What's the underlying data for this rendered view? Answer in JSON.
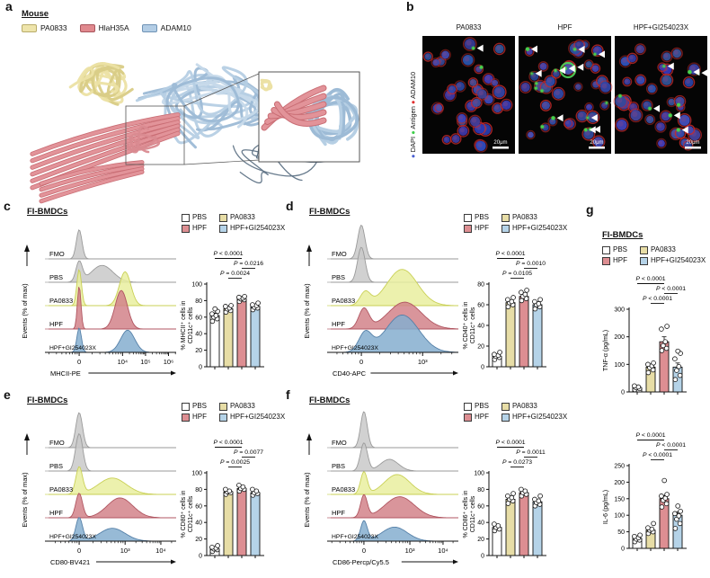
{
  "panel_a": {
    "letter": "a",
    "species_label": "Mouse",
    "legend": [
      {
        "label": "PA0833",
        "color": "#eee4ab",
        "stroke": "#b8ac6a"
      },
      {
        "label": "HlaH35A",
        "color": "#e0898e",
        "stroke": "#a8545c"
      },
      {
        "label": "ADAM10",
        "color": "#b3cde5",
        "stroke": "#6f93b5"
      }
    ]
  },
  "panel_b": {
    "letter": "b",
    "scale_label": "20μm",
    "side_markers": [
      {
        "label": "DAPI",
        "color": "#4a5fd0"
      },
      {
        "label": "Antigen",
        "color": "#3ecf4a"
      },
      {
        "label": "ADAM10",
        "color": "#e03030"
      }
    ],
    "images": [
      {
        "title": "PA0833",
        "green_spots": 2,
        "arrows": 1,
        "big_green": false
      },
      {
        "title": "HPF",
        "green_spots": 16,
        "arrows": 12,
        "big_green": true
      },
      {
        "title": "HPF+GI254023X",
        "green_spots": 8,
        "arrows": 6,
        "big_green": false
      }
    ]
  },
  "flow_legend": [
    {
      "label": "PBS",
      "color": "#ffffff"
    },
    {
      "label": "PA0833",
      "color": "#e7dda6"
    },
    {
      "label": "HPF",
      "color": "#dd8e92"
    },
    {
      "label": "HPF+GI254023X",
      "color": "#b5d3e8"
    }
  ],
  "row_labels": [
    "FMO",
    "PBS",
    "PA0833",
    "HPF",
    "HPF+GI254023X"
  ],
  "flow_panels": [
    {
      "letter": "c",
      "title": "FI-BMDCs",
      "ridge": {
        "ylabel": "Events (% of max)",
        "xlabel": "MHCII-PE",
        "ticks": [
          {
            "f": 0.24,
            "l": "0"
          },
          {
            "f": 0.58,
            "l": "10⁴"
          },
          {
            "f": 0.76,
            "l": "10⁵"
          },
          {
            "f": 0.94,
            "l": "10⁶"
          }
        ],
        "rows": [
          {
            "label": "FMO",
            "fill": "#c9c9c9",
            "stroke": "#9a9a9a",
            "peaks": [
              {
                "c": 0.24,
                "w": 0.022,
                "h": 1.25
              }
            ]
          },
          {
            "label": "PBS",
            "fill": "#c9c9c9",
            "stroke": "#9a9a9a",
            "peaks": [
              {
                "c": 0.24,
                "w": 0.025,
                "h": 0.85
              },
              {
                "c": 0.42,
                "w": 0.085,
                "h": 0.72
              }
            ]
          },
          {
            "label": "PA0833",
            "fill": "#e9ef9f",
            "stroke": "#c9d055",
            "peaks": [
              {
                "c": 0.24,
                "w": 0.018,
                "h": 1.55
              },
              {
                "c": 0.6,
                "w": 0.045,
                "h": 1.45
              }
            ]
          },
          {
            "label": "HPF",
            "fill": "#d2838a",
            "stroke": "#b05560",
            "peaks": [
              {
                "c": 0.24,
                "w": 0.014,
                "h": 1.85
              },
              {
                "c": 0.57,
                "w": 0.048,
                "h": 1.65
              }
            ]
          },
          {
            "label": "HPF+GI254023X",
            "fill": "#85aecf",
            "stroke": "#5580a8",
            "peaks": [
              {
                "c": 0.24,
                "w": 0.018,
                "h": 1.05
              },
              {
                "c": 0.62,
                "w": 0.055,
                "h": 0.95
              }
            ]
          }
        ]
      },
      "bar": {
        "ylabel_lines": [
          "% MHCII⁺ cells in",
          "CD11c⁺ cells"
        ],
        "ymax": 100,
        "ytick_step": 20,
        "values": [
          62,
          70,
          82,
          73
        ],
        "errors": [
          3,
          2,
          2,
          2
        ],
        "dots": [
          [
            55,
            58,
            60,
            62,
            64,
            67,
            70
          ],
          [
            66,
            68,
            70,
            71,
            73,
            74
          ],
          [
            79,
            81,
            82,
            83,
            84,
            85
          ],
          [
            69,
            71,
            72,
            74,
            75,
            77
          ]
        ],
        "pvals": [
          {
            "text": "P < 0.0001",
            "from": 0,
            "to": 2
          },
          {
            "text": "P = 0.0216",
            "from": 2,
            "to": 3
          },
          {
            "text": "P = 0.0024",
            "from": 1,
            "to": 2
          }
        ]
      }
    },
    {
      "letter": "d",
      "title": "FI-BMDCs",
      "ridge": {
        "ylabel": "Events (% of max)",
        "xlabel": "CD40-APC",
        "ticks": [
          {
            "f": 0.24,
            "l": "0"
          },
          {
            "f": 0.72,
            "l": "10³"
          }
        ],
        "rows": [
          {
            "label": "FMO",
            "fill": "#c9c9c9",
            "stroke": "#9a9a9a",
            "peaks": [
              {
                "c": 0.24,
                "w": 0.028,
                "h": 1.45
              }
            ]
          },
          {
            "label": "PBS",
            "fill": "#c9c9c9",
            "stroke": "#9a9a9a",
            "peaks": [
              {
                "c": 0.24,
                "w": 0.03,
                "h": 1.5
              }
            ]
          },
          {
            "label": "PA0833",
            "fill": "#e9ef9f",
            "stroke": "#c9d055",
            "peaks": [
              {
                "c": 0.27,
                "w": 0.04,
                "h": 0.55
              },
              {
                "c": 0.56,
                "w": 0.12,
                "h": 1.55
              }
            ]
          },
          {
            "label": "HPF",
            "fill": "#d2838a",
            "stroke": "#b05560",
            "peaks": [
              {
                "c": 0.26,
                "w": 0.04,
                "h": 0.85
              },
              {
                "c": 0.58,
                "w": 0.13,
                "h": 1.15
              }
            ]
          },
          {
            "label": "HPF+GI254023X",
            "fill": "#85aecf",
            "stroke": "#5580a8",
            "peaks": [
              {
                "c": 0.27,
                "w": 0.05,
                "h": 0.8
              },
              {
                "c": 0.56,
                "w": 0.13,
                "h": 1.6
              }
            ]
          }
        ]
      },
      "bar": {
        "ylabel_lines": [
          "% CD40⁺ cells in",
          "CD11c⁺ cells"
        ],
        "ymax": 80,
        "ytick_step": 20,
        "values": [
          10,
          62,
          68,
          60
        ],
        "errors": [
          2,
          2,
          2,
          2
        ],
        "dots": [
          [
            7,
            9,
            10,
            11,
            12,
            14
          ],
          [
            58,
            60,
            62,
            63,
            65,
            67
          ],
          [
            64,
            66,
            68,
            70,
            72,
            74
          ],
          [
            56,
            58,
            60,
            61,
            63,
            65
          ]
        ],
        "pvals": [
          {
            "text": "P < 0.0001",
            "from": 0,
            "to": 2
          },
          {
            "text": "P = 0.0010",
            "from": 2,
            "to": 3
          },
          {
            "text": "P = 0.0105",
            "from": 1,
            "to": 2
          }
        ]
      }
    },
    {
      "letter": "e",
      "title": "FI-BMDCs",
      "ridge": {
        "ylabel": "Events (% of max)",
        "xlabel": "CD80-BV421",
        "ticks": [
          {
            "f": 0.24,
            "l": "0"
          },
          {
            "f": 0.6,
            "l": "10³"
          },
          {
            "f": 0.88,
            "l": "10⁴"
          }
        ],
        "rows": [
          {
            "label": "FMO",
            "fill": "#c9c9c9",
            "stroke": "#9a9a9a",
            "peaks": [
              {
                "c": 0.24,
                "w": 0.026,
                "h": 1.5
              }
            ]
          },
          {
            "label": "PBS",
            "fill": "#c9c9c9",
            "stroke": "#9a9a9a",
            "peaks": [
              {
                "c": 0.24,
                "w": 0.028,
                "h": 1.6
              }
            ]
          },
          {
            "label": "PA0833",
            "fill": "#e9ef9f",
            "stroke": "#c9d055",
            "peaks": [
              {
                "c": 0.24,
                "w": 0.026,
                "h": 1.15
              },
              {
                "c": 0.5,
                "w": 0.11,
                "h": 0.7
              }
            ]
          },
          {
            "label": "HPF",
            "fill": "#d2838a",
            "stroke": "#b05560",
            "peaks": [
              {
                "c": 0.24,
                "w": 0.026,
                "h": 1.05
              },
              {
                "c": 0.56,
                "w": 0.1,
                "h": 0.85
              }
            ]
          },
          {
            "label": "HPF+GI254023X",
            "fill": "#85aecf",
            "stroke": "#5580a8",
            "peaks": [
              {
                "c": 0.24,
                "w": 0.026,
                "h": 1.0
              },
              {
                "c": 0.5,
                "w": 0.1,
                "h": 0.55
              }
            ]
          }
        ]
      },
      "bar": {
        "ylabel_lines": [
          "% CD80⁺ cells in",
          "CD11c⁺ cells"
        ],
        "ymax": 100,
        "ytick_step": 20,
        "values": [
          8,
          77,
          81,
          76
        ],
        "errors": [
          2,
          2,
          2,
          2
        ],
        "dots": [
          [
            5,
            7,
            8,
            9,
            10,
            12
          ],
          [
            74,
            76,
            77,
            78,
            80
          ],
          [
            78,
            80,
            81,
            83,
            85
          ],
          [
            73,
            75,
            76,
            78,
            80
          ]
        ],
        "pvals": [
          {
            "text": "P < 0.0001",
            "from": 0,
            "to": 2
          },
          {
            "text": "P = 0.0077",
            "from": 2,
            "to": 3
          },
          {
            "text": "P = 0.0025",
            "from": 1,
            "to": 2
          }
        ]
      }
    },
    {
      "letter": "f",
      "title": "FI-BMDCs",
      "ridge": {
        "ylabel": "Events (% of max)",
        "xlabel": "CD86-Percp/Cy5.5",
        "ticks": [
          {
            "f": 0.26,
            "l": "0"
          },
          {
            "f": 0.62,
            "l": "10³"
          },
          {
            "f": 0.88,
            "l": "10⁴"
          }
        ],
        "rows": [
          {
            "label": "FMO",
            "fill": "#c9c9c9",
            "stroke": "#9a9a9a",
            "peaks": [
              {
                "c": 0.26,
                "w": 0.026,
                "h": 1.55
              }
            ]
          },
          {
            "label": "PBS",
            "fill": "#c9c9c9",
            "stroke": "#9a9a9a",
            "peaks": [
              {
                "c": 0.26,
                "w": 0.028,
                "h": 1.2
              },
              {
                "c": 0.46,
                "w": 0.07,
                "h": 0.5
              }
            ]
          },
          {
            "label": "PA0833",
            "fill": "#e9ef9f",
            "stroke": "#c9d055",
            "peaks": [
              {
                "c": 0.26,
                "w": 0.026,
                "h": 0.95
              },
              {
                "c": 0.52,
                "w": 0.1,
                "h": 0.85
              }
            ]
          },
          {
            "label": "HPF",
            "fill": "#d2838a",
            "stroke": "#b05560",
            "peaks": [
              {
                "c": 0.26,
                "w": 0.026,
                "h": 0.95
              },
              {
                "c": 0.54,
                "w": 0.115,
                "h": 0.9
              }
            ]
          },
          {
            "label": "HPF+GI254023X",
            "fill": "#85aecf",
            "stroke": "#5580a8",
            "peaks": [
              {
                "c": 0.26,
                "w": 0.026,
                "h": 0.85
              },
              {
                "c": 0.5,
                "w": 0.1,
                "h": 0.6
              }
            ]
          }
        ]
      },
      "bar": {
        "ylabel_lines": [
          "% CD86⁺ cells in",
          "CD11c⁺ cells"
        ],
        "ymax": 100,
        "ytick_step": 20,
        "values": [
          34,
          68,
          76,
          65
        ],
        "errors": [
          2,
          2,
          2,
          2
        ],
        "dots": [
          [
            30,
            32,
            34,
            36,
            38
          ],
          [
            63,
            66,
            68,
            70,
            72,
            75
          ],
          [
            72,
            74,
            76,
            78,
            80
          ],
          [
            60,
            62,
            64,
            66,
            68,
            72
          ]
        ],
        "pvals": [
          {
            "text": "P < 0.0001",
            "from": 0,
            "to": 2
          },
          {
            "text": "P = 0.0011",
            "from": 2,
            "to": 3
          },
          {
            "text": "P = 0.0273",
            "from": 1,
            "to": 2
          }
        ]
      }
    }
  ],
  "panel_g": {
    "letter": "g",
    "title": "FI-BMDCs",
    "charts": [
      {
        "ylabel": "TNF-α (pg/mL)",
        "ymax": 300,
        "ytick_step": 100,
        "values": [
          15,
          90,
          182,
          90
        ],
        "errors": [
          5,
          10,
          18,
          15
        ],
        "dots": [
          [
            8,
            12,
            15,
            18,
            22
          ],
          [
            70,
            80,
            88,
            95,
            100,
            105
          ],
          [
            150,
            158,
            168,
            182,
            228,
            238
          ],
          [
            45,
            60,
            78,
            92,
            120,
            140,
            148
          ]
        ],
        "pvals": [
          {
            "text": "P < 0.0001",
            "from": 0,
            "to": 2
          },
          {
            "text": "P < 0.0001",
            "from": 2,
            "to": 3
          },
          {
            "text": "P < 0.0001",
            "from": 1,
            "to": 2
          }
        ]
      },
      {
        "ylabel": "IL-6 (pg/mL)",
        "ymax": 250,
        "ytick_step": 50,
        "values": [
          30,
          55,
          150,
          100
        ],
        "errors": [
          5,
          8,
          10,
          10
        ],
        "dots": [
          [
            20,
            25,
            28,
            32,
            36,
            40
          ],
          [
            45,
            50,
            55,
            58,
            62,
            75
          ],
          [
            125,
            135,
            145,
            152,
            158,
            163,
            205
          ],
          [
            60,
            75,
            88,
            98,
            105,
            112,
            128
          ]
        ],
        "pvals": [
          {
            "text": "P < 0.0001",
            "from": 0,
            "to": 2
          },
          {
            "text": "P < 0.0001",
            "from": 2,
            "to": 3
          },
          {
            "text": "P < 0.0001",
            "from": 1,
            "to": 2
          }
        ]
      }
    ]
  }
}
